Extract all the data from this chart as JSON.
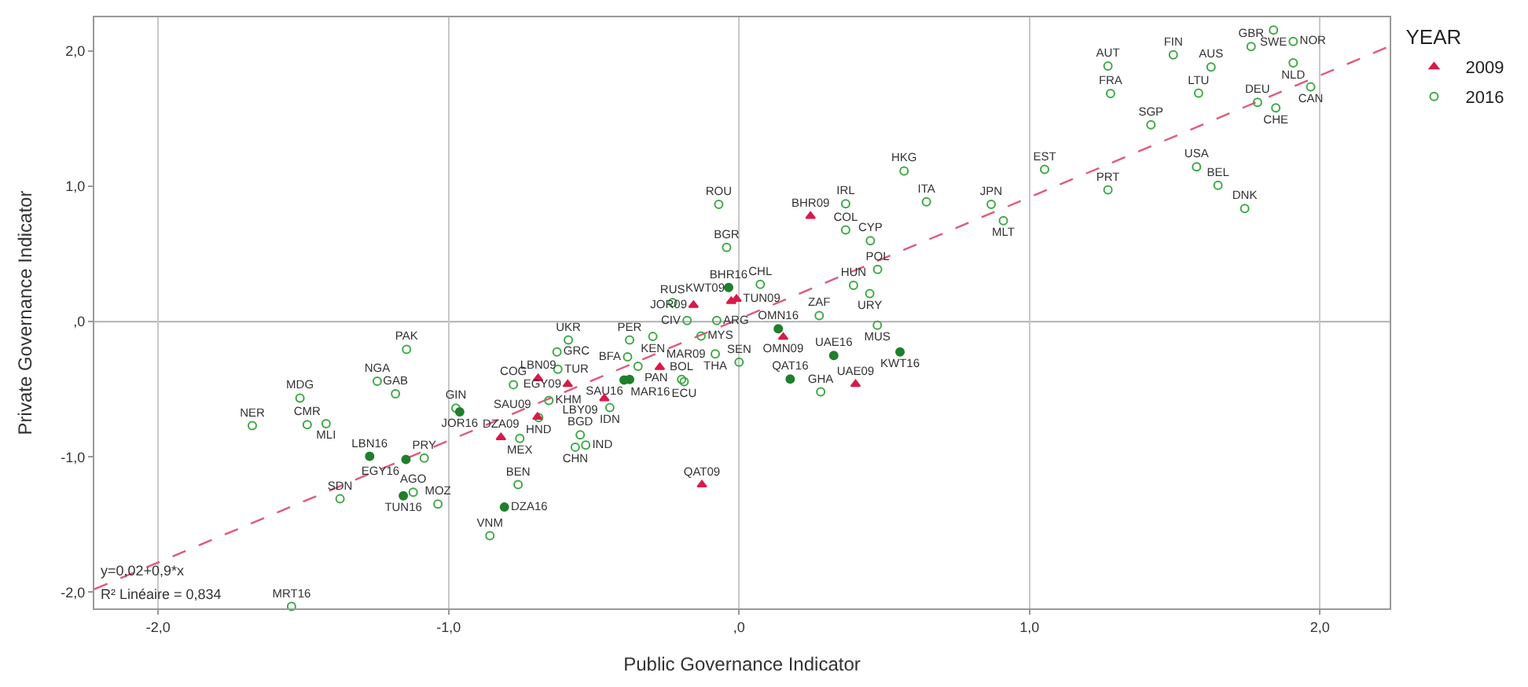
{
  "chart_data": {
    "type": "scatter",
    "xlabel": "Public Governance Indicator",
    "ylabel": "Private Governance Indicator",
    "legend_title": "YEAR",
    "xlim": [
      -2.22,
      2.24
    ],
    "ylim": [
      -2.12,
      2.25
    ],
    "xticks": [
      {
        "value": -2,
        "label": "-2,0"
      },
      {
        "value": -1,
        "label": "-1,0"
      },
      {
        "value": 0,
        "label": ",0"
      },
      {
        "value": 1,
        "label": "1,0"
      },
      {
        "value": 2,
        "label": "2,0"
      }
    ],
    "yticks": [
      {
        "value": -2,
        "label": "-2,0"
      },
      {
        "value": -1,
        "label": "-1,0"
      },
      {
        "value": 0,
        "label": ",0"
      },
      {
        "value": 1,
        "label": "1,0"
      },
      {
        "value": 2,
        "label": "2,0"
      }
    ],
    "grid": "x",
    "legend": "top right",
    "ref_lines": [
      {
        "axis": "y",
        "value": 0,
        "color": "#b0b0b0"
      }
    ],
    "annotations": [
      "y=0,02+0,9*x",
      "R² Linéaire = 0,834"
    ],
    "series": [
      {
        "type": "line",
        "color": "#e05a7a",
        "line_style": "dashed",
        "marker": "none",
        "x": [
          -2.22,
          2.24
        ],
        "values": [
          -1.978,
          2.036
        ]
      },
      {
        "name": "2016",
        "color": "#3ea845",
        "marker": "circle-open",
        "x": [
          -1.145,
          -1.246,
          -1.183,
          -1.512,
          -1.676,
          -1.487,
          -1.422,
          -1.084,
          -1.122,
          -1.374,
          -1.037,
          -1.541,
          -0.043,
          -0.229,
          -0.179,
          -0.077,
          -0.131,
          -0.082,
          0.0,
          -0.297,
          -0.377,
          -0.384,
          -0.348,
          -0.588,
          -0.627,
          -0.624,
          -0.777,
          -0.655,
          -0.69,
          -0.445,
          -0.755,
          -0.547,
          -0.564,
          -0.528,
          -0.198,
          -0.189,
          -0.761,
          -0.858,
          0.073,
          -0.07,
          0.276,
          0.394,
          0.45,
          0.477,
          0.476,
          0.452,
          0.367,
          0.367,
          0.645,
          0.568,
          0.281,
          0.868,
          0.91,
          1.052,
          1.27,
          1.27,
          1.279,
          1.418,
          1.495,
          1.625,
          1.582,
          1.575,
          1.649,
          1.741,
          1.763,
          1.84,
          1.908,
          1.908,
          1.785,
          1.848,
          1.968,
          -0.975
        ],
        "values": [
          -0.205,
          -0.44,
          -0.534,
          -0.565,
          -0.769,
          -0.761,
          -0.754,
          -1.008,
          -1.261,
          -1.31,
          -1.349,
          -2.106,
          0.549,
          0.14,
          0.008,
          0.008,
          -0.106,
          -0.239,
          -0.3,
          -0.11,
          -0.136,
          -0.261,
          -0.33,
          -0.136,
          -0.224,
          -0.352,
          -0.466,
          -0.583,
          -0.71,
          -0.636,
          -0.864,
          -0.837,
          -0.928,
          -0.913,
          -0.428,
          -0.443,
          -1.205,
          -1.583,
          0.276,
          0.867,
          0.045,
          0.269,
          0.208,
          0.386,
          -0.026,
          0.598,
          0.678,
          0.871,
          0.886,
          1.114,
          -0.519,
          0.867,
          0.746,
          1.125,
          0.974,
          1.89,
          1.686,
          1.455,
          1.973,
          1.883,
          1.689,
          1.144,
          1.008,
          0.837,
          2.034,
          2.155,
          1.913,
          2.072,
          1.621,
          1.58,
          1.735,
          -0.64
        ],
        "value_labels": [
          "PAK",
          "NGA",
          "GAB",
          "MDG",
          "NER",
          "CMR",
          "MLI",
          "PRY",
          "AGO",
          "SDN",
          "MOZ",
          "MRT16",
          "BGR",
          "RUS",
          "CIV",
          "ARG",
          "MYS",
          "THA",
          "SEN",
          "KEN",
          "PER",
          "BFA",
          "PAN",
          "UKR",
          "GRC",
          "TUR",
          "COG",
          "KHM",
          "HND",
          "IDN",
          "MEX",
          "BGD",
          "CHN",
          "IND",
          "BOL",
          "ECU",
          "BEN",
          "VNM",
          "CHL",
          "ROU",
          "ZAF",
          "HUN",
          "URY",
          "POL",
          "MUS",
          "CYP",
          "COL",
          "IRL",
          "ITA",
          "HKG",
          "GHA",
          "JPN",
          "MLT",
          "EST",
          "PRT",
          "AUT",
          "FRA",
          "SGP",
          "FIN",
          "AUS",
          "LTU",
          "USA",
          "BEL",
          "DNK",
          "GBR",
          "SWE",
          "NLD",
          "NOR",
          "DEU",
          "CHE",
          "CAN",
          "GIN"
        ]
      },
      {
        "color": "#1f7f2a",
        "marker": "circle",
        "x": [
          -1.272,
          -1.147,
          -1.156,
          -0.036,
          -0.396,
          -0.377,
          -0.962,
          -0.808,
          0.135,
          0.326,
          0.554,
          0.176
        ],
        "values": [
          -0.996,
          -1.019,
          -1.288,
          0.253,
          -0.432,
          -0.428,
          -0.667,
          -1.371,
          -0.053,
          -0.25,
          -0.224,
          -0.424
        ],
        "value_labels": [
          "LBN16",
          "EGY16",
          "TUN16",
          "BHR16",
          "MAR16",
          "SAU16",
          "JOR16",
          "DZA16",
          "OMN16",
          "UAE16",
          "KWT16",
          "QAT16"
        ]
      },
      {
        "name": "2009",
        "color": "#d81b4a",
        "marker": "triangle",
        "x": [
          -0.157,
          -0.009,
          -0.027,
          -0.273,
          -0.59,
          -0.692,
          -0.694,
          -0.464,
          -0.82,
          -0.128,
          0.246,
          0.152,
          0.401
        ],
        "values": [
          0.122,
          0.167,
          0.151,
          -0.337,
          -0.463,
          -0.42,
          -0.705,
          -0.568,
          -0.856,
          -1.205,
          0.78,
          -0.114,
          -0.462
        ],
        "value_labels": [
          "JOR09",
          "TUN09",
          "KWT09",
          "MAR09",
          "EGY09",
          "LBN09",
          "SAU09",
          "LBY09",
          "DZA09",
          "QAT09",
          "BHR09",
          "OMN09",
          "UAE09"
        ]
      }
    ]
  }
}
